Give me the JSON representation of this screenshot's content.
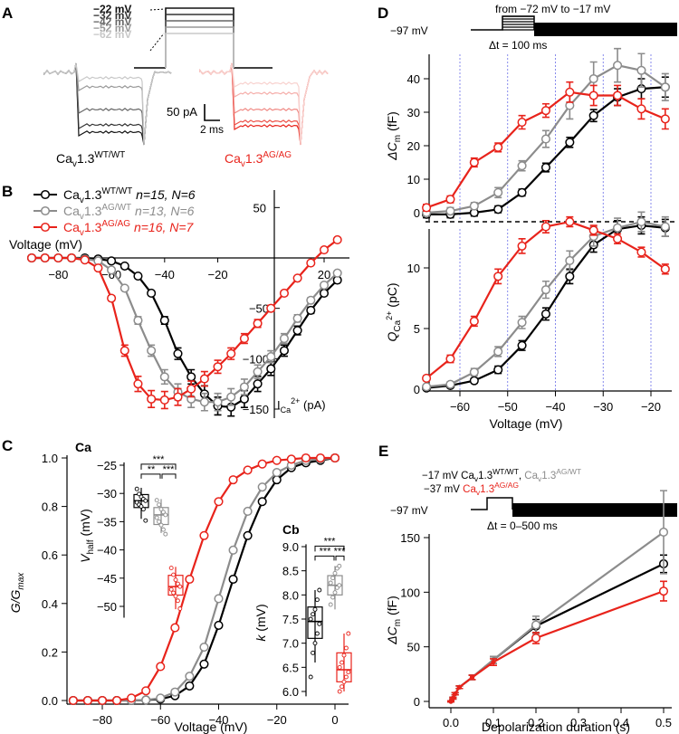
{
  "panels": {
    "a": "A",
    "b": "B",
    "c": "C",
    "ca": "Ca",
    "cb": "Cb",
    "d": "D",
    "e": "E"
  },
  "colors": {
    "wt": "#000000",
    "ag_wt": "#8c8c8c",
    "ag": "#e8231b",
    "ag_light": "#f08a85",
    "wt_light": "#bbbbbb",
    "blue": "#6a6ee8"
  },
  "panel_a": {
    "steps": [
      "−22 mV",
      "−32 mV",
      "−42 mV",
      "−52 mV",
      "−62 mV"
    ],
    "step_colors": [
      "#111111",
      "#333333",
      "#666666",
      "#999999",
      "#c8c8c8"
    ],
    "scale_current": "50 pA",
    "scale_time": "2 ms",
    "label_wt_base": "Ca",
    "label_wt_sub": "v",
    "label_wt_mid": "1.3",
    "label_wt_sup": "WT/WT",
    "label_ag_base": "Ca",
    "label_ag_sub": "v",
    "label_ag_mid": "1.3",
    "label_ag_sup": "AG/AG"
  },
  "legend_b": [
    {
      "name": "Ca",
      "sub": "v",
      "mid": "1.3",
      "sup": "WT/WT",
      "n": "n=15, N=6",
      "color": "#000000"
    },
    {
      "name": "Ca",
      "sub": "v",
      "mid": "1.3",
      "sup": "AG/WT",
      "n": "n=13, N=6",
      "color": "#8c8c8c"
    },
    {
      "name": "Ca",
      "sub": "v",
      "mid": "1.3",
      "sup": "AG/AG",
      "n": "n=16, N=7",
      "color": "#e8231b"
    }
  ],
  "panel_d": {
    "protocol_holding": "−97 mV",
    "protocol_range": "from −72 mV to −17 mV",
    "protocol_dt": "Δt = 100 ms"
  },
  "panel_e": {
    "protocol_holding": "−97 mV",
    "protocol_line1_a": "−17 mV Ca",
    "protocol_line1_wt": "v1.3WT/WT,",
    "protocol_line1_agwt": "Cav1.3AG/WT",
    "protocol_line2_a": "−37 mV",
    "protocol_line2_ag": "Cav1.3AG/AG",
    "protocol_dt": "Δt = 0–500 ms"
  },
  "chart_data": [
    {
      "id": "B",
      "type": "line",
      "title": "",
      "xlabel": "Voltage (mV)",
      "ylabel": "I",
      "ylabel_sub": "Ca",
      "ylabel_sup": "2+",
      "ylabel_unit": "(pA)",
      "xlim": [
        -92,
        27
      ],
      "ylim": [
        -165,
        75
      ],
      "xticks": [
        -80,
        -60,
        -40,
        -20,
        20
      ],
      "yticks": [
        50,
        -50,
        -100,
        -150
      ],
      "x": [
        -90,
        -85,
        -80,
        -75,
        -70,
        -65,
        -60,
        -55,
        -50,
        -45,
        -40,
        -35,
        -30,
        -25,
        -20,
        -15,
        -10,
        -5,
        0,
        5,
        10,
        15,
        20,
        25
      ],
      "series": [
        {
          "name": "Cav1.3 WT/WT",
          "color": "#000000",
          "values": [
            0,
            0,
            0,
            0,
            0,
            -1,
            -3,
            -8,
            -18,
            -35,
            -62,
            -95,
            -118,
            -135,
            -147,
            -148,
            -140,
            -125,
            -110,
            -92,
            -72,
            -52,
            -35,
            -22
          ]
        },
        {
          "name": "Cav1.3 AG/WT",
          "color": "#8c8c8c",
          "values": [
            0,
            0,
            0,
            0,
            -1,
            -3,
            -12,
            -30,
            -62,
            -92,
            -118,
            -133,
            -140,
            -143,
            -143,
            -138,
            -128,
            -113,
            -98,
            -80,
            -60,
            -42,
            -27,
            -15
          ]
        },
        {
          "name": "Cav1.3 AG/AG",
          "color": "#e8231b",
          "values": [
            0,
            0,
            0,
            0,
            -2,
            -10,
            -40,
            -92,
            -125,
            -140,
            -141,
            -138,
            -130,
            -120,
            -108,
            -95,
            -80,
            -65,
            -50,
            -35,
            -20,
            -5,
            8,
            18
          ]
        }
      ]
    },
    {
      "id": "C",
      "type": "line",
      "xlabel": "Voltage (mV)",
      "ylabel": "G/G",
      "ylabel_sub": "max",
      "xlim": [
        -92,
        3
      ],
      "ylim": [
        -0.03,
        1.02
      ],
      "xticks": [
        -80,
        -60,
        -40,
        -20,
        0
      ],
      "yticks": [
        0.0,
        0.2,
        0.4,
        0.6,
        0.8,
        1.0
      ],
      "x": [
        -90,
        -85,
        -80,
        -75,
        -70,
        -65,
        -60,
        -55,
        -50,
        -45,
        -40,
        -35,
        -30,
        -25,
        -20,
        -15,
        -10,
        -5,
        0
      ],
      "series": [
        {
          "name": "Cav1.3 WT/WT",
          "color": "#000000",
          "values": [
            0,
            0,
            0,
            0,
            0,
            0.002,
            0.006,
            0.02,
            0.06,
            0.15,
            0.31,
            0.5,
            0.68,
            0.82,
            0.91,
            0.96,
            0.98,
            0.99,
            1.0
          ]
        },
        {
          "name": "Cav1.3 AG/WT",
          "color": "#8c8c8c",
          "values": [
            0,
            0,
            0,
            0,
            0,
            0.002,
            0.01,
            0.035,
            0.1,
            0.22,
            0.42,
            0.62,
            0.78,
            0.88,
            0.94,
            0.97,
            0.99,
            0.995,
            1.0
          ]
        },
        {
          "name": "Cav1.3 AG/AG",
          "color": "#e8231b",
          "values": [
            0,
            0,
            0,
            0,
            0.01,
            0.04,
            0.14,
            0.3,
            0.5,
            0.68,
            0.82,
            0.91,
            0.95,
            0.975,
            0.99,
            0.995,
            1.0,
            1.0,
            1.0
          ]
        }
      ]
    },
    {
      "id": "Ca",
      "type": "box",
      "ylabel": "V",
      "ylabel_sub": "half",
      "ylabel_unit": "(mV)",
      "ylim": [
        -52,
        -24.5
      ],
      "yticks": [
        -25,
        -30,
        -35,
        -40,
        -45,
        -50
      ],
      "groups": [
        {
          "name": "WT/WT",
          "color": "#000000",
          "q1": -32.5,
          "median": -31.3,
          "q3": -30.2,
          "whisker_low": -34.5,
          "whisker_high": -29,
          "points": [
            -29.2,
            -30.1,
            -30.6,
            -31.0,
            -31.3,
            -31.6,
            -32.0,
            -32.3,
            -32.8,
            -34.8
          ]
        },
        {
          "name": "AG/WT",
          "color": "#8c8c8c",
          "q1": -35.5,
          "median": -33.8,
          "q3": -32.5,
          "whisker_low": -37,
          "whisker_high": -31,
          "points": [
            -31.2,
            -32.0,
            -32.8,
            -33.3,
            -33.8,
            -34.3,
            -35.0,
            -35.6,
            -36.4,
            -37.2
          ]
        },
        {
          "name": "AG/AG",
          "color": "#e8231b",
          "q1": -48,
          "median": -46.5,
          "q3": -44.5,
          "whisker_low": -50.5,
          "whisker_high": -43,
          "points": [
            -43.2,
            -44.4,
            -45.3,
            -46.0,
            -46.5,
            -47.0,
            -47.6,
            -48.2,
            -49.0,
            -50.4
          ]
        }
      ],
      "significance": [
        "***",
        "**",
        "***"
      ]
    },
    {
      "id": "Cb",
      "type": "box",
      "ylabel": "k",
      "ylabel_unit": "(mV)",
      "ylim": [
        5.9,
        9.05
      ],
      "yticks": [
        6.0,
        6.5,
        7.0,
        7.5,
        8.0,
        8.5,
        9.0
      ],
      "groups": [
        {
          "name": "WT/WT",
          "color": "#000000",
          "q1": 7.1,
          "median": 7.45,
          "q3": 7.75,
          "whisker_low": 6.6,
          "whisker_high": 8.1,
          "points": [
            6.3,
            6.8,
            7.0,
            7.2,
            7.4,
            7.5,
            7.6,
            7.7,
            7.9,
            8.1
          ]
        },
        {
          "name": "AG/WT",
          "color": "#8c8c8c",
          "q1": 8.0,
          "median": 8.2,
          "q3": 8.4,
          "whisker_low": 7.7,
          "whisker_high": 8.6,
          "points": [
            7.8,
            7.95,
            8.05,
            8.15,
            8.2,
            8.25,
            8.35,
            8.45,
            8.55,
            8.6
          ]
        },
        {
          "name": "AG/AG",
          "color": "#e8231b",
          "q1": 6.2,
          "median": 6.45,
          "q3": 6.8,
          "whisker_low": 6.0,
          "whisker_high": 7.2,
          "points": [
            6.0,
            6.1,
            6.2,
            6.3,
            6.4,
            6.5,
            6.6,
            6.75,
            6.9,
            7.2
          ]
        }
      ],
      "significance": [
        "***",
        "***",
        "***"
      ]
    },
    {
      "id": "D_top",
      "type": "line",
      "xlabel": "",
      "ylabel": "ΔC",
      "ylabel_sub": "m",
      "ylabel_unit": "(fF)",
      "xlim": [
        -69,
        -16
      ],
      "ylim": [
        -3,
        47
      ],
      "yticks": [
        0,
        10,
        20,
        30,
        40
      ],
      "x": [
        -67,
        -62,
        -57,
        -52,
        -47,
        -42,
        -37,
        -32,
        -27,
        -22,
        -17
      ],
      "series": [
        {
          "name": "Cav1.3 WT/WT",
          "color": "#000000",
          "values": [
            -0.5,
            -0.5,
            0,
            1,
            6,
            13.5,
            21,
            29,
            34.5,
            37,
            37.5
          ],
          "errors": [
            1,
            1,
            1,
            1,
            1,
            1.3,
            1.5,
            1.8,
            2.5,
            3,
            3
          ]
        },
        {
          "name": "Cav1.3 AG/WT",
          "color": "#8c8c8c",
          "values": [
            0,
            0.5,
            2,
            6,
            14,
            22,
            32,
            40,
            44,
            42.5,
            37.5
          ],
          "errors": [
            1,
            1,
            1,
            1.5,
            1.5,
            2.5,
            4,
            5,
            5,
            5,
            4
          ]
        },
        {
          "name": "Cav1.3 AG/AG",
          "color": "#e8231b",
          "values": [
            1.5,
            4,
            15,
            19.5,
            27,
            30.5,
            36,
            35,
            35,
            31,
            28
          ],
          "errors": [
            1,
            1,
            1.3,
            1.3,
            2,
            2,
            3,
            3,
            3,
            3,
            3
          ]
        }
      ],
      "markers": [
        -60,
        -50,
        -40,
        -30,
        -20
      ]
    },
    {
      "id": "D_bottom",
      "type": "line",
      "xlabel": "Voltage (mV)",
      "ylabel": "Q",
      "ylabel_sub": "Ca",
      "ylabel_sup": "2+",
      "ylabel_unit": "(pC)",
      "xlim": [
        -69,
        -16
      ],
      "ylim": [
        -0.1,
        14.4
      ],
      "xticks": [
        -60,
        -50,
        -40,
        -30,
        -20
      ],
      "yticks": [
        0,
        5,
        10
      ],
      "x": [
        -67,
        -62,
        -57,
        -52,
        -47,
        -42,
        -37,
        -32,
        -27,
        -22,
        -17
      ],
      "series": [
        {
          "name": "Cav1.3 WT/WT",
          "color": "#000000",
          "values": [
            0.1,
            0.3,
            0.7,
            1.6,
            3.6,
            6.2,
            9.3,
            11.9,
            13.2,
            13.5,
            13.3
          ],
          "errors": [
            0.1,
            0.1,
            0.2,
            0.3,
            0.4,
            0.5,
            0.6,
            0.6,
            0.7,
            0.7,
            0.7
          ]
        },
        {
          "name": "Cav1.3 AG/WT",
          "color": "#8c8c8c",
          "values": [
            0.2,
            0.4,
            1.4,
            3.1,
            5.5,
            8.2,
            10.6,
            12.6,
            13.3,
            13.8,
            13.4
          ],
          "errors": [
            0.1,
            0.2,
            0.3,
            0.4,
            0.5,
            0.7,
            0.8,
            0.8,
            0.8,
            0.8,
            0.8
          ]
        },
        {
          "name": "Cav1.3 AG/AG",
          "color": "#e8231b",
          "values": [
            0.9,
            2.5,
            5.6,
            9.3,
            11.8,
            13.4,
            13.8,
            13.1,
            12.4,
            11.3,
            9.9
          ],
          "errors": [
            0.2,
            0.3,
            0.4,
            0.6,
            0.6,
            0.5,
            0.4,
            0.4,
            0.4,
            0.4,
            0.4
          ]
        }
      ],
      "markers": [
        -60,
        -50,
        -40,
        -30,
        -20
      ]
    },
    {
      "id": "E",
      "type": "line",
      "xlabel": "Depolarization duration (s)",
      "ylabel": "ΔC",
      "ylabel_sub": "m",
      "ylabel_unit": "(fF)",
      "xlim": [
        -0.01,
        0.51
      ],
      "ylim": [
        -5,
        185
      ],
      "xticks": [
        0.0,
        0.1,
        0.2,
        0.3,
        0.4,
        0.5
      ],
      "yticks": [
        0,
        50,
        100,
        150
      ],
      "x": [
        0.0,
        0.005,
        0.01,
        0.02,
        0.05,
        0.1,
        0.2,
        0.5
      ],
      "series": [
        {
          "name": "Cav1.3 WT/WT",
          "color": "#000000",
          "values": [
            0,
            3,
            7,
            13,
            22,
            38,
            69,
            126
          ],
          "errors": [
            0.5,
            0.8,
            1,
            1.2,
            2,
            3,
            6,
            8
          ]
        },
        {
          "name": "Cav1.3 AG/WT",
          "color": "#8c8c8c",
          "values": [
            0,
            3,
            7,
            13,
            22,
            38,
            70,
            155
          ],
          "errors": [
            0.5,
            0.8,
            1,
            1.2,
            2,
            3,
            8,
            38
          ]
        },
        {
          "name": "Cav1.3 AG/AG",
          "color": "#e8231b",
          "values": [
            0,
            3,
            7,
            13,
            22,
            36,
            58,
            101
          ],
          "errors": [
            0.5,
            0.8,
            1,
            1.2,
            2,
            3,
            5,
            9
          ]
        }
      ]
    }
  ]
}
